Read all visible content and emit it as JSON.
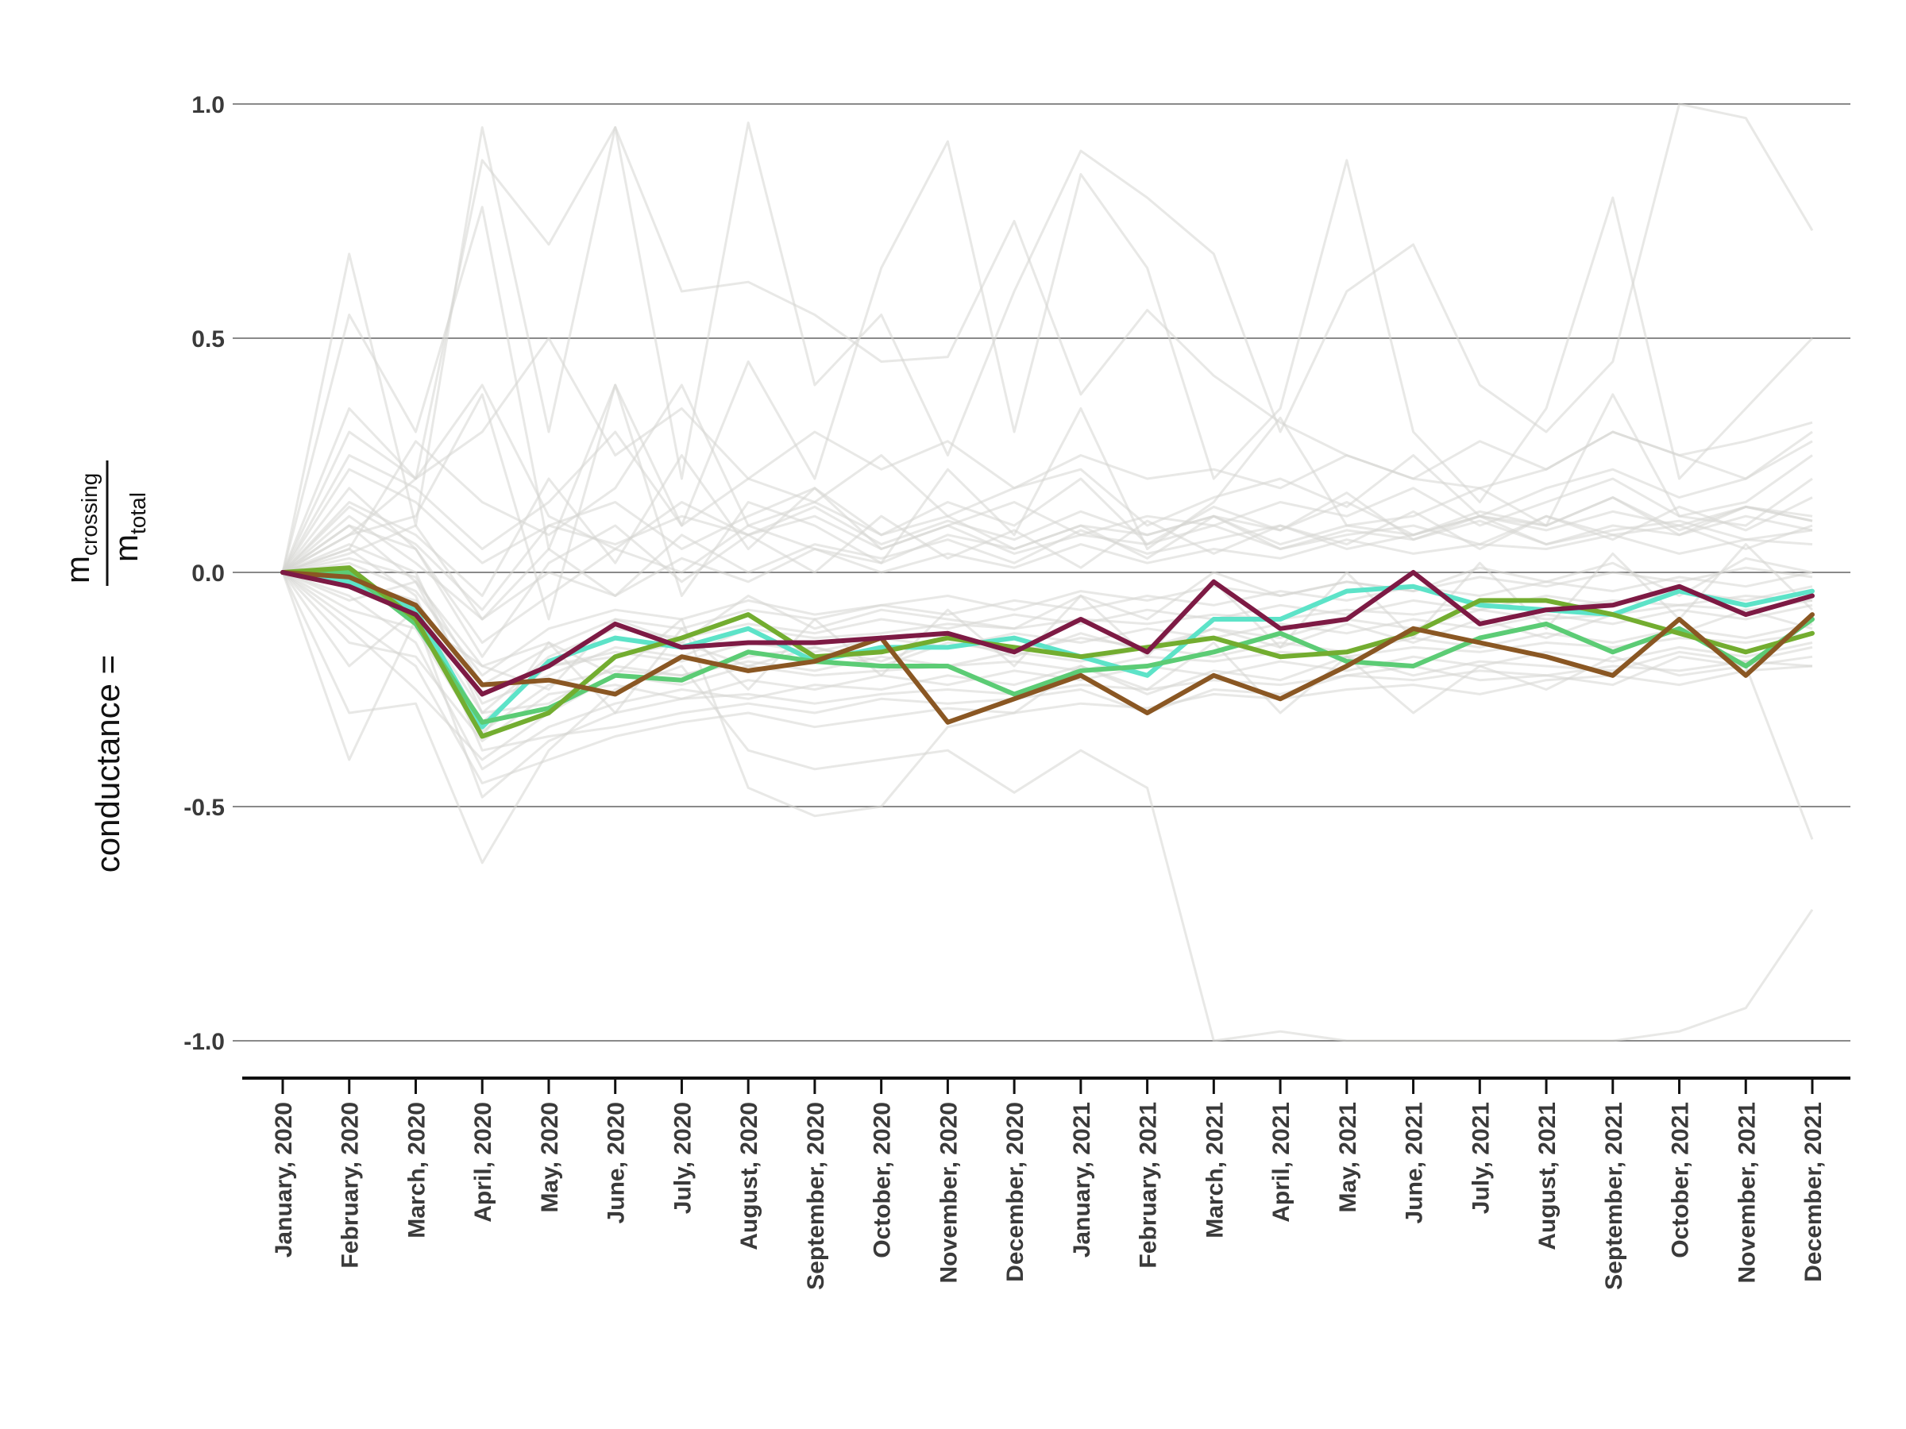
{
  "chart_data": {
    "type": "line",
    "ylabel": {
      "left": "conductance =",
      "numerator_main": "m",
      "numerator_sub": "crossing",
      "denominator_main": "m",
      "denominator_sub": "total"
    },
    "ylim": [
      -1.1,
      1.1
    ],
    "yticks": [
      1.0,
      0.5,
      0.0,
      -0.5,
      -1.0
    ],
    "ytick_labels": [
      "1.0",
      "0.5",
      "0.0",
      "-0.5",
      "-1.0"
    ],
    "grid": "horizontal",
    "categories": [
      "January, 2020",
      "February, 2020",
      "March, 2020",
      "April, 2020",
      "May, 2020",
      "June, 2020",
      "July, 2020",
      "August, 2020",
      "September, 2020",
      "October, 2020",
      "November, 2020",
      "December, 2020",
      "January, 2021",
      "February, 2021",
      "March, 2021",
      "April, 2021",
      "May, 2021",
      "June, 2021",
      "July, 2021",
      "August, 2021",
      "September, 2021",
      "October, 2021",
      "November, 2021",
      "December, 2021"
    ],
    "highlight_series": [
      {
        "color": "#5de3c8",
        "values": [
          0.0,
          -0.02,
          -0.08,
          -0.33,
          -0.19,
          -0.14,
          -0.16,
          -0.12,
          -0.19,
          -0.16,
          -0.16,
          -0.14,
          -0.18,
          -0.22,
          -0.1,
          -0.1,
          -0.04,
          -0.03,
          -0.07,
          -0.08,
          -0.09,
          -0.04,
          -0.07,
          -0.04
        ]
      },
      {
        "color": "#5ccc75",
        "values": [
          0.0,
          0.0,
          -0.11,
          -0.32,
          -0.29,
          -0.22,
          -0.23,
          -0.17,
          -0.19,
          -0.2,
          -0.2,
          -0.26,
          -0.21,
          -0.2,
          -0.17,
          -0.13,
          -0.19,
          -0.2,
          -0.14,
          -0.11,
          -0.17,
          -0.12,
          -0.2,
          -0.1
        ]
      },
      {
        "color": "#73ad30",
        "values": [
          0.0,
          0.01,
          -0.1,
          -0.35,
          -0.3,
          -0.18,
          -0.14,
          -0.09,
          -0.18,
          -0.17,
          -0.14,
          -0.16,
          -0.18,
          -0.16,
          -0.14,
          -0.18,
          -0.17,
          -0.13,
          -0.06,
          -0.06,
          -0.09,
          -0.13,
          -0.17,
          -0.13
        ]
      },
      {
        "color": "#8a5723",
        "values": [
          0.0,
          -0.01,
          -0.07,
          -0.24,
          -0.23,
          -0.26,
          -0.18,
          -0.21,
          -0.19,
          -0.14,
          -0.32,
          -0.27,
          -0.22,
          -0.3,
          -0.22,
          -0.27,
          -0.2,
          -0.12,
          -0.15,
          -0.18,
          -0.22,
          -0.1,
          -0.22,
          -0.09
        ]
      },
      {
        "color": "#7d1a44",
        "values": [
          0.0,
          -0.03,
          -0.09,
          -0.26,
          -0.2,
          -0.11,
          -0.16,
          -0.15,
          -0.15,
          -0.14,
          -0.13,
          -0.17,
          -0.1,
          -0.17,
          -0.02,
          -0.12,
          -0.1,
          0.0,
          -0.11,
          -0.08,
          -0.07,
          -0.03,
          -0.09,
          -0.05
        ]
      }
    ],
    "background_series": [
      {
        "values": [
          0.0,
          0.05,
          -0.05,
          -0.38,
          -0.35,
          -0.33,
          -0.3,
          -0.28,
          -0.3,
          -0.27,
          -0.28,
          -0.27,
          -0.25,
          -0.3,
          -0.25,
          -0.26,
          -0.22,
          -0.2,
          -0.23,
          -0.22,
          -0.24,
          -0.18,
          -0.2,
          -0.18
        ]
      },
      {
        "values": [
          0.0,
          0.1,
          -0.02,
          -0.2,
          -0.25,
          -0.1,
          -0.15,
          -0.05,
          -0.12,
          -0.08,
          -0.1,
          -0.12,
          -0.05,
          -0.1,
          0.0,
          -0.05,
          -0.02,
          -0.04,
          0.01,
          -0.02,
          0.02,
          -0.05,
          0.03,
          0.0
        ]
      },
      {
        "values": [
          0.0,
          0.18,
          0.05,
          -0.15,
          -0.05,
          0.05,
          0.0,
          0.1,
          0.05,
          0.02,
          0.08,
          0.05,
          0.1,
          0.03,
          0.12,
          0.05,
          0.08,
          0.1,
          0.06,
          0.12,
          0.08,
          0.1,
          0.05,
          0.1
        ]
      },
      {
        "values": [
          0.0,
          -0.05,
          -0.15,
          -0.42,
          -0.33,
          -0.28,
          -0.25,
          -0.27,
          -0.24,
          -0.25,
          -0.22,
          -0.24,
          -0.2,
          -0.26,
          -0.21,
          -0.23,
          -0.18,
          -0.22,
          -0.19,
          -0.2,
          -0.21,
          -0.17,
          -0.19,
          -0.16
        ]
      },
      {
        "values": [
          0.0,
          0.0,
          -0.08,
          -0.3,
          -0.28,
          -0.2,
          -0.22,
          -0.18,
          -0.16,
          -0.2,
          -0.15,
          -0.17,
          -0.14,
          -0.16,
          -0.12,
          -0.14,
          -0.1,
          -0.12,
          -0.08,
          -0.1,
          -0.09,
          -0.07,
          -0.08,
          -0.06
        ]
      },
      {
        "values": [
          0.0,
          -0.1,
          -0.2,
          -0.45,
          -0.4,
          -0.35,
          -0.32,
          -0.3,
          -0.33,
          -0.31,
          -0.29,
          -0.3,
          -0.28,
          -0.29,
          -0.26,
          -0.27,
          -0.25,
          -0.24,
          -0.26,
          -0.23,
          -0.22,
          -0.24,
          -0.21,
          -0.2
        ]
      },
      {
        "values": [
          0.0,
          0.12,
          0.02,
          -0.1,
          0.05,
          -0.05,
          0.08,
          0.0,
          0.06,
          0.03,
          0.07,
          0.02,
          0.09,
          0.04,
          0.07,
          0.1,
          0.05,
          0.08,
          0.12,
          0.06,
          0.09,
          0.11,
          0.07,
          0.09
        ]
      },
      {
        "values": [
          0.0,
          0.3,
          0.2,
          0.88,
          0.7,
          0.95,
          0.6,
          0.62,
          0.55,
          0.45,
          0.46,
          0.75,
          0.38,
          0.56,
          0.42,
          0.32,
          0.25,
          0.2,
          0.18,
          0.22,
          0.3,
          0.25,
          0.2,
          0.3
        ]
      },
      {
        "values": [
          0.0,
          0.55,
          0.3,
          0.78,
          0.05,
          0.4,
          0.1,
          0.45,
          0.2,
          0.65,
          0.92,
          0.3,
          0.85,
          0.65,
          0.2,
          0.35,
          0.88,
          0.3,
          0.15,
          0.35,
          0.8,
          0.2,
          0.35,
          0.5
        ]
      },
      {
        "values": [
          0.0,
          0.68,
          0.1,
          0.95,
          0.3,
          0.95,
          0.2,
          0.96,
          0.4,
          0.55,
          0.25,
          0.6,
          0.9,
          0.8,
          0.68,
          0.3,
          0.6,
          0.7,
          0.4,
          0.3,
          0.45,
          1.0,
          0.97,
          0.73
        ]
      },
      {
        "values": [
          0.0,
          -0.3,
          -0.28,
          -0.62,
          -0.38,
          -0.25,
          -0.2,
          -0.38,
          -0.42,
          -0.4,
          -0.38,
          -0.47,
          -0.38,
          -0.46,
          -1.0,
          -0.98,
          -1.0,
          -1.0,
          -1.0,
          -1.0,
          -1.0,
          -0.98,
          -0.93,
          -0.72
        ]
      },
      {
        "values": [
          0.0,
          -0.4,
          -0.1,
          -0.2,
          -0.15,
          -0.22,
          -0.1,
          -0.46,
          -0.52,
          -0.5,
          -0.33,
          -0.3,
          -0.2,
          -0.25,
          -0.15,
          -0.3,
          -0.18,
          -0.3,
          -0.2,
          -0.25,
          -0.18,
          -0.22,
          -0.2,
          -0.57
        ]
      },
      {
        "values": [
          0.0,
          0.08,
          0.12,
          0.38,
          -0.1,
          0.4,
          -0.05,
          0.15,
          0.1,
          0.02,
          0.22,
          0.08,
          0.35,
          0.05,
          0.15,
          0.33,
          0.1,
          0.12,
          0.18,
          0.1,
          0.38,
          0.12,
          0.1,
          0.2
        ]
      },
      {
        "values": [
          0.0,
          0.22,
          0.15,
          0.02,
          0.1,
          0.15,
          0.05,
          0.12,
          0.18,
          0.05,
          0.1,
          0.15,
          0.08,
          0.12,
          0.1,
          0.15,
          0.12,
          0.18,
          0.1,
          0.15,
          0.2,
          0.12,
          0.15,
          0.25
        ]
      },
      {
        "values": [
          0.0,
          -0.12,
          -0.25,
          -0.4,
          -0.3,
          -0.22,
          -0.24,
          -0.2,
          -0.22,
          -0.21,
          -0.2,
          -0.19,
          -0.21,
          -0.18,
          -0.19,
          -0.17,
          -0.18,
          -0.16,
          -0.17,
          -0.15,
          -0.16,
          -0.14,
          -0.15,
          -0.13
        ]
      },
      {
        "values": [
          0.0,
          0.02,
          -0.04,
          -0.22,
          -0.12,
          -0.08,
          -0.1,
          -0.06,
          -0.09,
          -0.07,
          -0.05,
          -0.08,
          -0.04,
          -0.06,
          -0.03,
          -0.05,
          -0.02,
          -0.04,
          -0.01,
          -0.03,
          0.0,
          -0.02,
          0.01,
          -0.01
        ]
      },
      {
        "values": [
          0.0,
          0.06,
          0.0,
          -0.3,
          -0.18,
          -0.12,
          -0.14,
          -0.11,
          -0.13,
          -0.1,
          -0.12,
          -0.09,
          -0.11,
          -0.08,
          -0.1,
          -0.07,
          -0.09,
          -0.06,
          -0.08,
          -0.05,
          -0.07,
          -0.04,
          -0.06,
          -0.03
        ]
      },
      {
        "values": [
          0.0,
          -0.08,
          -0.12,
          -0.35,
          -0.15,
          -0.3,
          -0.12,
          -0.25,
          -0.1,
          -0.22,
          -0.08,
          -0.2,
          -0.05,
          -0.18,
          -0.02,
          -0.16,
          0.0,
          -0.14,
          0.02,
          -0.12,
          0.04,
          -0.1,
          0.06,
          -0.08
        ]
      },
      {
        "values": [
          0.0,
          0.15,
          0.08,
          -0.05,
          0.2,
          0.02,
          0.25,
          0.05,
          0.18,
          0.08,
          0.15,
          0.1,
          0.2,
          0.06,
          0.14,
          0.09,
          0.17,
          0.07,
          0.12,
          0.1,
          0.16,
          0.08,
          0.14,
          0.12
        ]
      },
      {
        "values": [
          0.0,
          -0.02,
          -0.06,
          -0.26,
          -0.2,
          -0.17,
          -0.19,
          -0.15,
          -0.17,
          -0.14,
          -0.16,
          -0.13,
          -0.15,
          -0.12,
          -0.14,
          -0.11,
          -0.13,
          -0.1,
          -0.12,
          -0.09,
          -0.11,
          -0.08,
          -0.1,
          -0.07
        ]
      },
      {
        "values": [
          0.0,
          0.04,
          0.1,
          -0.1,
          0.0,
          -0.05,
          0.03,
          -0.02,
          0.05,
          0.0,
          0.04,
          0.01,
          0.06,
          0.02,
          0.05,
          0.03,
          0.07,
          0.04,
          0.06,
          0.05,
          0.08,
          0.04,
          0.07,
          0.06
        ]
      },
      {
        "values": [
          0.0,
          -0.15,
          -0.18,
          -0.36,
          -0.26,
          -0.24,
          -0.27,
          -0.23,
          -0.25,
          -0.22,
          -0.24,
          -0.21,
          -0.23,
          -0.2,
          -0.22,
          -0.19,
          -0.21,
          -0.18,
          -0.2,
          -0.17,
          -0.19,
          -0.16,
          -0.18,
          -0.15
        ]
      },
      {
        "values": [
          0.0,
          0.1,
          0.05,
          -0.18,
          0.02,
          0.1,
          -0.02,
          0.08,
          0.0,
          0.12,
          0.03,
          0.09,
          0.01,
          0.11,
          0.04,
          0.1,
          0.06,
          0.13,
          0.05,
          0.12,
          0.07,
          0.14,
          0.09,
          0.16
        ]
      },
      {
        "values": [
          0.0,
          0.25,
          0.18,
          0.05,
          0.15,
          0.3,
          0.1,
          0.2,
          0.15,
          0.25,
          0.12,
          0.18,
          0.22,
          0.1,
          0.16,
          0.2,
          0.14,
          0.25,
          0.12,
          0.18,
          0.22,
          0.16,
          0.2,
          0.28
        ]
      },
      {
        "values": [
          0.0,
          -0.06,
          -0.02,
          -0.28,
          -0.22,
          -0.16,
          -0.18,
          -0.12,
          -0.14,
          -0.13,
          -0.11,
          -0.12,
          -0.1,
          -0.11,
          -0.09,
          -0.1,
          -0.08,
          -0.09,
          -0.07,
          -0.08,
          -0.06,
          -0.07,
          -0.05,
          -0.06
        ]
      },
      {
        "values": [
          0.0,
          0.0,
          -0.1,
          -0.48,
          -0.36,
          -0.3,
          -0.27,
          -0.26,
          -0.28,
          -0.26,
          -0.25,
          -0.26,
          -0.24,
          -0.25,
          -0.23,
          -0.24,
          -0.22,
          -0.23,
          -0.21,
          -0.22,
          -0.2,
          -0.21,
          -0.19,
          -0.2
        ]
      },
      {
        "values": [
          0.0,
          0.08,
          0.2,
          0.4,
          0.12,
          0.05,
          0.15,
          0.08,
          0.12,
          0.05,
          0.1,
          0.04,
          0.08,
          0.06,
          0.1,
          0.05,
          0.09,
          0.07,
          0.11,
          0.06,
          0.1,
          0.08,
          0.12,
          0.09
        ]
      },
      {
        "values": [
          0.0,
          -0.2,
          -0.08,
          -0.32,
          -0.2,
          -0.18,
          -0.15,
          -0.2,
          -0.16,
          -0.19,
          -0.14,
          -0.18,
          -0.13,
          -0.17,
          -0.12,
          -0.16,
          -0.11,
          -0.15,
          -0.1,
          -0.14,
          -0.09,
          -0.13,
          -0.08,
          -0.12
        ]
      },
      {
        "values": [
          0.0,
          0.05,
          0.28,
          0.15,
          0.08,
          0.18,
          0.4,
          0.1,
          0.15,
          0.08,
          0.12,
          0.05,
          0.1,
          0.08,
          0.12,
          0.06,
          0.1,
          0.08,
          0.12,
          0.09,
          0.13,
          0.1,
          0.14,
          0.11
        ]
      },
      {
        "values": [
          0.0,
          0.03,
          -0.01,
          -0.24,
          -0.16,
          -0.1,
          -0.12,
          -0.08,
          -0.1,
          -0.07,
          -0.09,
          -0.06,
          -0.08,
          -0.05,
          -0.07,
          -0.04,
          -0.06,
          -0.03,
          -0.05,
          -0.02,
          -0.04,
          -0.01,
          -0.03,
          0.0
        ]
      },
      {
        "values": [
          0.0,
          -0.03,
          -0.09,
          -0.34,
          -0.24,
          -0.21,
          -0.22,
          -0.19,
          -0.21,
          -0.18,
          -0.2,
          -0.17,
          -0.19,
          -0.16,
          -0.18,
          -0.15,
          -0.17,
          -0.14,
          -0.16,
          -0.13,
          -0.15,
          -0.12,
          -0.14,
          -0.11
        ]
      },
      {
        "values": [
          0.0,
          0.14,
          0.06,
          -0.08,
          0.1,
          0.06,
          0.12,
          0.08,
          0.14,
          0.06,
          0.11,
          0.07,
          0.13,
          0.08,
          0.12,
          0.09,
          0.15,
          0.08,
          0.13,
          0.1,
          0.16,
          0.09,
          0.14,
          0.11
        ]
      },
      {
        "values": [
          0.0,
          0.35,
          0.2,
          0.3,
          0.5,
          0.25,
          0.35,
          0.2,
          0.3,
          0.22,
          0.28,
          0.18,
          0.25,
          0.2,
          0.22,
          0.18,
          0.25,
          0.2,
          0.28,
          0.22,
          0.3,
          0.25,
          0.28,
          0.32
        ]
      }
    ]
  }
}
